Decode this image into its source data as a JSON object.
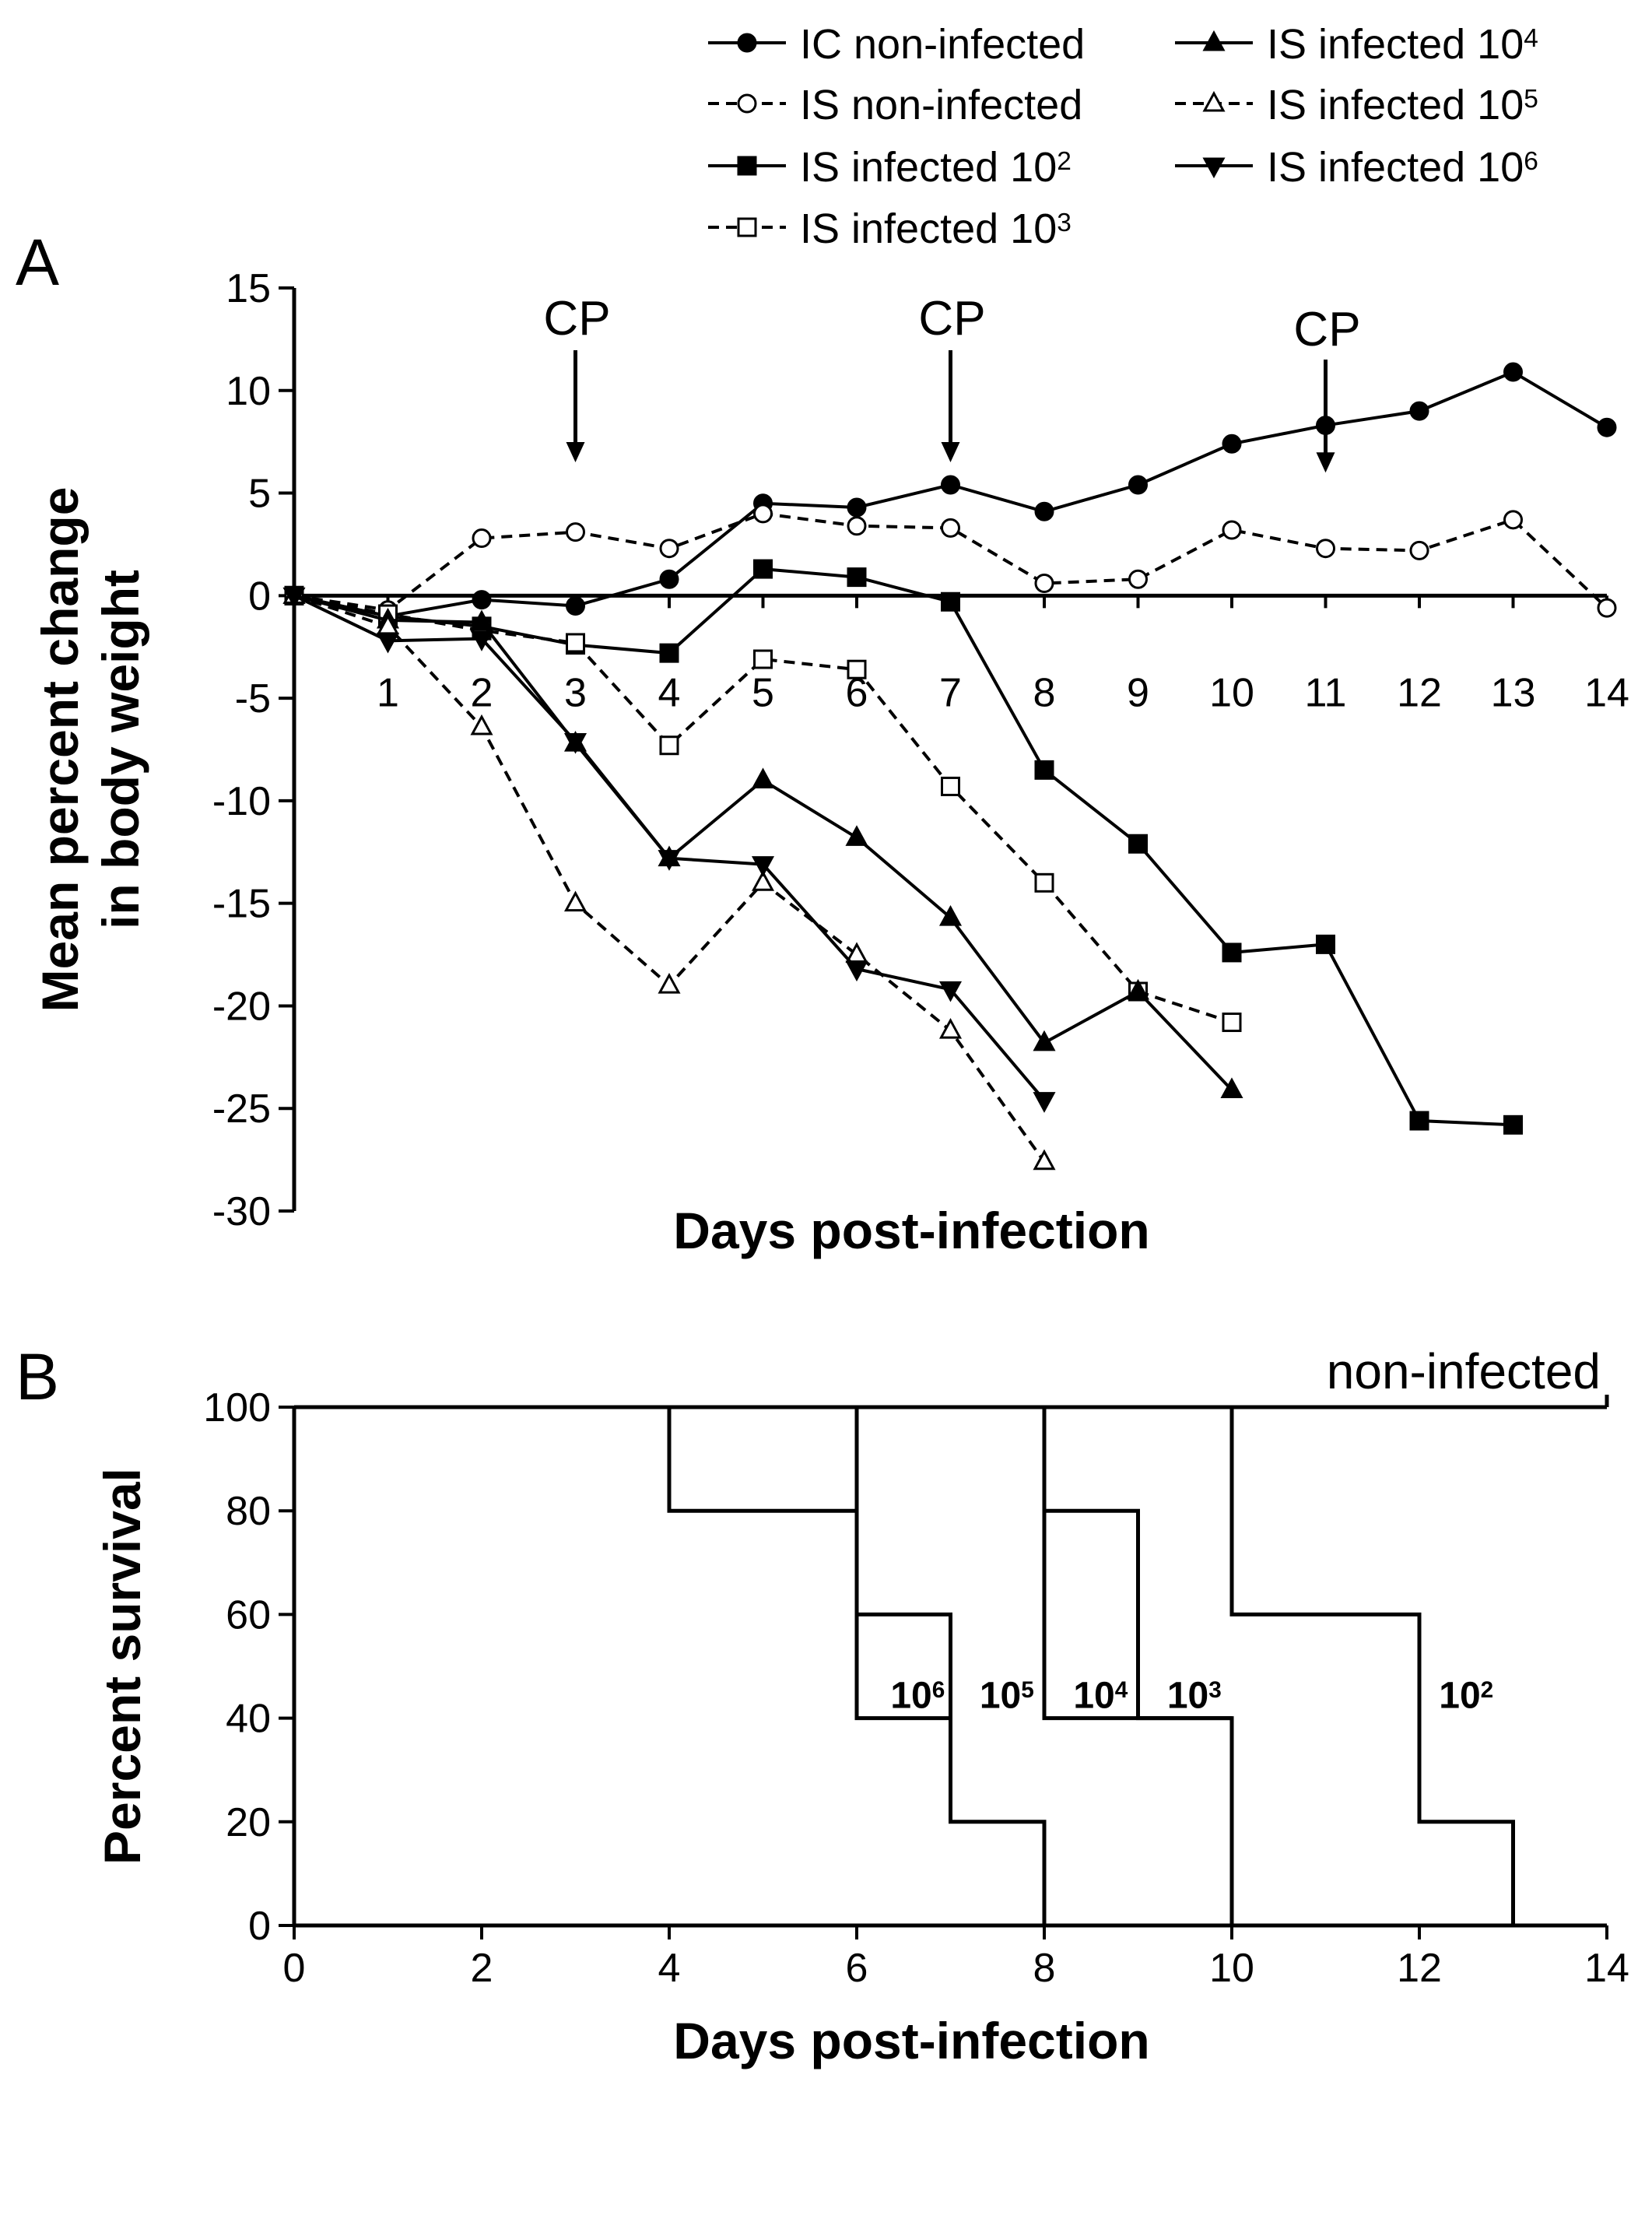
{
  "chart_data": [
    {
      "panel": "A",
      "type": "line",
      "xlabel": "Days post-infection",
      "ylabel_lines": [
        "Mean percent change",
        "in body weight"
      ],
      "xlim": [
        0,
        14
      ],
      "ylim": [
        -30,
        15
      ],
      "xticks": [
        1,
        2,
        3,
        4,
        5,
        6,
        7,
        8,
        9,
        10,
        11,
        12,
        13,
        14
      ],
      "yticks": [
        15,
        10,
        5,
        0,
        -5,
        -10,
        -15,
        -20,
        -25,
        -30
      ],
      "x_axis_at": 0,
      "legend_position": "top-right",
      "annotations": [
        {
          "text": "CP",
          "x": 3,
          "arrow_to_y": 6.5
        },
        {
          "text": "CP",
          "x": 7,
          "arrow_to_y": 6.5
        },
        {
          "text": "CP",
          "x": 11,
          "arrow_to_y": 6.0
        }
      ],
      "series": [
        {
          "name": "IC non-infected",
          "label_base": "IC non-infected",
          "exp": "",
          "marker": "circle",
          "filled": true,
          "dashed": false,
          "x": [
            0,
            1,
            2,
            3,
            4,
            5,
            6,
            7,
            8,
            9,
            10,
            11,
            12,
            13,
            14
          ],
          "values": [
            0,
            -1,
            -0.2,
            -0.5,
            0.8,
            4.5,
            4.3,
            5.4,
            4.1,
            5.4,
            7.4,
            8.3,
            9.0,
            10.9,
            8.2
          ]
        },
        {
          "name": "IS non-infected",
          "label_base": "IS non-infected",
          "exp": "",
          "marker": "circle",
          "filled": false,
          "dashed": true,
          "x": [
            0,
            1,
            2,
            3,
            4,
            5,
            6,
            7,
            8,
            9,
            10,
            11,
            12,
            13,
            14
          ],
          "values": [
            0,
            -0.7,
            2.8,
            3.1,
            2.3,
            4.0,
            3.4,
            3.3,
            0.6,
            0.8,
            3.2,
            2.3,
            2.2,
            3.7,
            -0.6
          ]
        },
        {
          "name": "IS infected 10^2",
          "label_base": "IS infected 10",
          "exp": "2",
          "marker": "square",
          "filled": true,
          "dashed": false,
          "x": [
            0,
            1,
            2,
            3,
            4,
            5,
            6,
            7,
            8,
            9,
            10,
            11,
            12,
            13
          ],
          "values": [
            0,
            -1,
            -1.5,
            -2.4,
            -2.8,
            1.3,
            0.9,
            -0.3,
            -8.5,
            -12.1,
            -17.4,
            -17.0,
            -25.6,
            -25.8
          ]
        },
        {
          "name": "IS infected 10^3",
          "label_base": "IS infected 10",
          "exp": "3",
          "marker": "square",
          "filled": false,
          "dashed": true,
          "x": [
            0,
            1,
            2,
            3,
            4,
            5,
            6,
            7,
            8,
            9,
            10
          ],
          "values": [
            0,
            -0.9,
            -1.7,
            -2.3,
            -7.3,
            -3.1,
            -3.6,
            -9.3,
            -14.0,
            -19.3,
            -20.8
          ]
        },
        {
          "name": "IS infected 10^4",
          "label_base": "IS infected 10",
          "exp": "4",
          "marker": "triangle-up",
          "filled": true,
          "dashed": false,
          "x": [
            0,
            1,
            2,
            3,
            4,
            5,
            6,
            7,
            8,
            9,
            10
          ],
          "values": [
            0,
            -1.2,
            -1.3,
            -7.2,
            -12.8,
            -9.0,
            -11.8,
            -15.7,
            -21.8,
            -19.3,
            -24.1
          ]
        },
        {
          "name": "IS infected 10^5",
          "label_base": "IS infected 10",
          "exp": "5",
          "marker": "triangle-up",
          "filled": false,
          "dashed": true,
          "x": [
            0,
            1,
            2,
            3,
            4,
            5,
            6,
            7,
            8
          ],
          "values": [
            0,
            -1.5,
            -6.4,
            -15.0,
            -19.0,
            -14.0,
            -17.5,
            -21.2,
            -27.6
          ]
        },
        {
          "name": "IS infected 10^6",
          "label_base": "IS infected 10",
          "exp": "6",
          "marker": "triangle-down",
          "filled": true,
          "dashed": false,
          "x": [
            0,
            1,
            2,
            3,
            4,
            5,
            6,
            7,
            8
          ],
          "values": [
            0,
            -2.2,
            -2.1,
            -7.1,
            -12.8,
            -13.1,
            -18.2,
            -19.2,
            -24.6
          ]
        }
      ]
    },
    {
      "panel": "B",
      "type": "line",
      "step": true,
      "xlabel": "Days post-infection",
      "ylabel": "Percent survival",
      "xlim": [
        0,
        14
      ],
      "ylim": [
        0,
        100
      ],
      "xticks": [
        0,
        2,
        4,
        6,
        8,
        10,
        12,
        14
      ],
      "yticks": [
        0,
        20,
        40,
        60,
        80,
        100
      ],
      "series": [
        {
          "name": "non-infected",
          "label_base": "non-infected",
          "exp": "",
          "x": [
            0,
            14
          ],
          "values": [
            100,
            100
          ]
        },
        {
          "name": "10^6",
          "label_base": "10",
          "exp": "6",
          "x": [
            0,
            4,
            4,
            6,
            6,
            7,
            7
          ],
          "values": [
            100,
            100,
            80,
            80,
            40,
            40,
            20
          ],
          "label_at": [
            6.65,
            42
          ]
        },
        {
          "name": "10^5",
          "label_base": "10",
          "exp": "5",
          "x": [
            6,
            6,
            7,
            7,
            8,
            8
          ],
          "values": [
            100,
            60,
            60,
            20,
            20,
            0
          ],
          "label_at": [
            7.6,
            42
          ]
        },
        {
          "name": "10^4",
          "label_base": "10",
          "exp": "4",
          "x": [
            8,
            8,
            9,
            9,
            10,
            10
          ],
          "values": [
            100,
            80,
            80,
            40,
            40,
            0
          ],
          "label_at": [
            8.6,
            42
          ]
        },
        {
          "name": "10^3",
          "label_base": "10",
          "exp": "3",
          "x": [
            8,
            8,
            10
          ],
          "values": [
            80,
            40,
            40
          ],
          "label_at": [
            9.6,
            42
          ]
        },
        {
          "name": "10^2",
          "label_base": "10",
          "exp": "2",
          "x": [
            10,
            10,
            12,
            12,
            13,
            13
          ],
          "values": [
            100,
            60,
            60,
            20,
            20,
            0
          ],
          "label_at": [
            12.5,
            42
          ]
        }
      ]
    }
  ]
}
